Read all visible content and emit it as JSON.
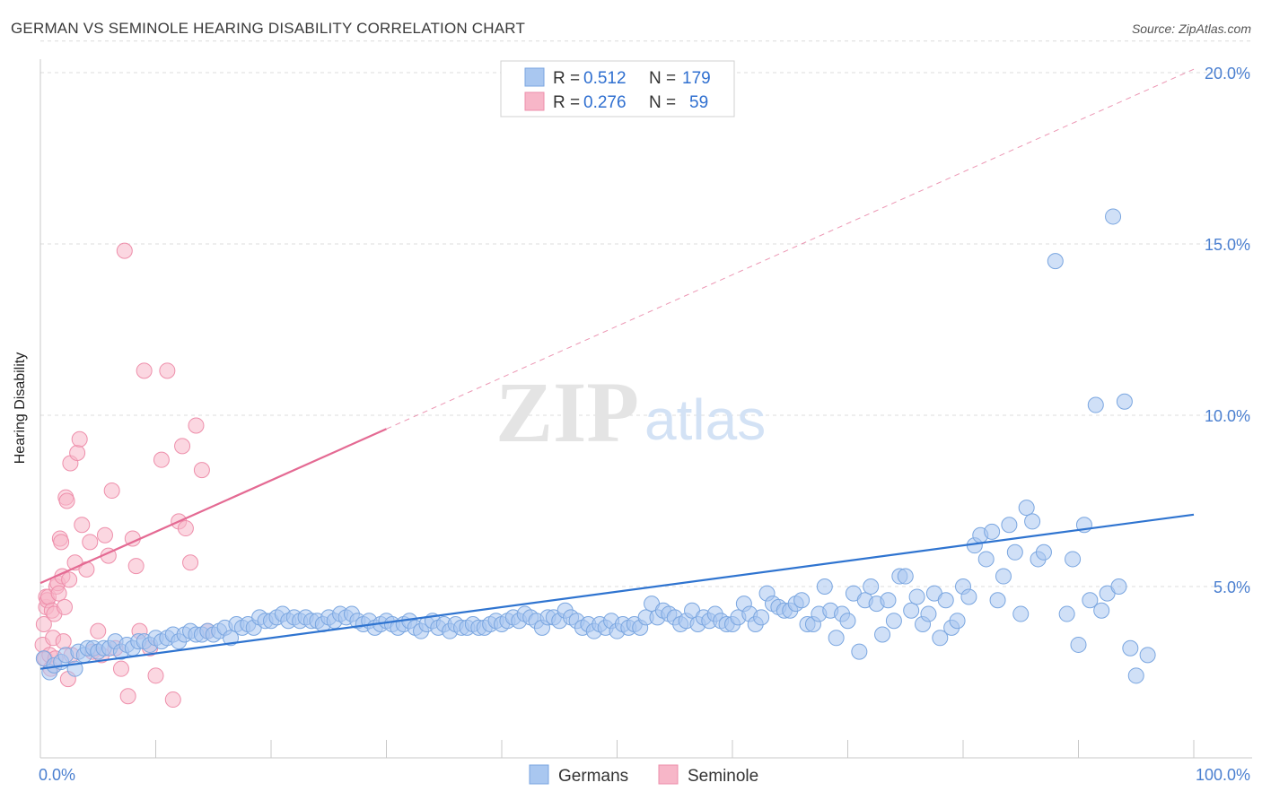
{
  "header": {
    "title": "GERMAN VS SEMINOLE HEARING DISABILITY CORRELATION CHART",
    "source": "Source: ZipAtlas.com"
  },
  "legend_top": {
    "rows": [
      {
        "r_label": "R =",
        "r_value": "0.512",
        "n_label": "N =",
        "n_value": "179",
        "color": "#a9c7f0"
      },
      {
        "r_label": "R =",
        "r_value": "0.276",
        "n_label": "N =",
        "n_value": "59",
        "color": "#f7b6c8"
      }
    ]
  },
  "legend_bottom": {
    "items": [
      {
        "label": "Germans",
        "color": "#a9c7f0"
      },
      {
        "label": "Seminole",
        "color": "#f7b6c8"
      }
    ]
  },
  "watermark": {
    "zip": "ZIP",
    "atlas": "atlas"
  },
  "colors": {
    "blue_point": "#a9c7f0",
    "blue_edge": "#7aa6e0",
    "blue_line": "#2f74d0",
    "pink_point": "#f7b6c8",
    "pink_edge": "#ee8fab",
    "pink_line": "#e46a93",
    "tick_label": "#4a7fd0",
    "grid": "#dcdcdc"
  },
  "chart_data": {
    "type": "scatter",
    "title": "GERMAN VS SEMINOLE HEARING DISABILITY CORRELATION CHART",
    "xlabel": "",
    "ylabel": "Hearing Disability",
    "xlim": [
      0,
      100
    ],
    "ylim": [
      0,
      21
    ],
    "x_tick_labels": [
      "0.0%",
      "100.0%"
    ],
    "y_ticks": [
      5,
      10,
      15,
      20
    ],
    "y_tick_labels": [
      "5.0%",
      "10.0%",
      "15.0%",
      "20.0%"
    ],
    "grid": true,
    "legend_position": "top-center",
    "series": [
      {
        "name": "Germans",
        "r": 0.512,
        "n": 179,
        "trend": {
          "x": [
            0,
            100
          ],
          "y": [
            2.6,
            7.1
          ],
          "style": "solid"
        },
        "points": [
          [
            0.3,
            2.9
          ],
          [
            0.8,
            2.5
          ],
          [
            1.2,
            2.7
          ],
          [
            1.8,
            2.8
          ],
          [
            2.2,
            3.0
          ],
          [
            3.0,
            2.6
          ],
          [
            3.3,
            3.1
          ],
          [
            3.8,
            3.0
          ],
          [
            4.1,
            3.2
          ],
          [
            4.6,
            3.2
          ],
          [
            5.0,
            3.1
          ],
          [
            5.5,
            3.2
          ],
          [
            6.0,
            3.2
          ],
          [
            6.5,
            3.4
          ],
          [
            7.0,
            3.1
          ],
          [
            7.5,
            3.3
          ],
          [
            8.0,
            3.2
          ],
          [
            8.5,
            3.4
          ],
          [
            9.0,
            3.4
          ],
          [
            9.5,
            3.3
          ],
          [
            10.0,
            3.5
          ],
          [
            10.5,
            3.4
          ],
          [
            11.0,
            3.5
          ],
          [
            11.5,
            3.6
          ],
          [
            12.0,
            3.4
          ],
          [
            12.5,
            3.6
          ],
          [
            13.0,
            3.7
          ],
          [
            13.5,
            3.6
          ],
          [
            14.0,
            3.6
          ],
          [
            14.5,
            3.7
          ],
          [
            15.0,
            3.6
          ],
          [
            15.5,
            3.7
          ],
          [
            16.0,
            3.8
          ],
          [
            16.5,
            3.5
          ],
          [
            17.0,
            3.9
          ],
          [
            17.5,
            3.8
          ],
          [
            18.0,
            3.9
          ],
          [
            18.5,
            3.8
          ],
          [
            19.0,
            4.1
          ],
          [
            19.5,
            4.0
          ],
          [
            20.0,
            4.0
          ],
          [
            20.5,
            4.1
          ],
          [
            21.0,
            4.2
          ],
          [
            21.5,
            4.0
          ],
          [
            22.0,
            4.1
          ],
          [
            22.5,
            4.0
          ],
          [
            23.0,
            4.1
          ],
          [
            23.5,
            4.0
          ],
          [
            24.0,
            4.0
          ],
          [
            24.5,
            3.9
          ],
          [
            25.0,
            4.1
          ],
          [
            25.5,
            4.0
          ],
          [
            26.0,
            4.2
          ],
          [
            26.5,
            4.1
          ],
          [
            27.0,
            4.2
          ],
          [
            27.5,
            4.0
          ],
          [
            28.0,
            3.9
          ],
          [
            28.5,
            4.0
          ],
          [
            29.0,
            3.8
          ],
          [
            29.5,
            3.9
          ],
          [
            30.0,
            4.0
          ],
          [
            30.5,
            3.9
          ],
          [
            31.0,
            3.8
          ],
          [
            31.5,
            3.9
          ],
          [
            32.0,
            4.0
          ],
          [
            32.5,
            3.8
          ],
          [
            33.0,
            3.7
          ],
          [
            33.5,
            3.9
          ],
          [
            34.0,
            4.0
          ],
          [
            34.5,
            3.8
          ],
          [
            35.0,
            3.9
          ],
          [
            35.5,
            3.7
          ],
          [
            36.0,
            3.9
          ],
          [
            36.5,
            3.8
          ],
          [
            37.0,
            3.8
          ],
          [
            37.5,
            3.9
          ],
          [
            38.0,
            3.8
          ],
          [
            38.5,
            3.8
          ],
          [
            39.0,
            3.9
          ],
          [
            39.5,
            4.0
          ],
          [
            40.0,
            3.9
          ],
          [
            40.5,
            4.0
          ],
          [
            41.0,
            4.1
          ],
          [
            41.5,
            4.0
          ],
          [
            42.0,
            4.2
          ],
          [
            42.5,
            4.1
          ],
          [
            43.0,
            4.0
          ],
          [
            43.5,
            3.8
          ],
          [
            44.0,
            4.1
          ],
          [
            44.5,
            4.1
          ],
          [
            45.0,
            4.0
          ],
          [
            45.5,
            4.3
          ],
          [
            46.0,
            4.1
          ],
          [
            46.5,
            4.0
          ],
          [
            47.0,
            3.8
          ],
          [
            47.5,
            3.9
          ],
          [
            48.0,
            3.7
          ],
          [
            48.5,
            3.9
          ],
          [
            49.0,
            3.8
          ],
          [
            49.5,
            4.0
          ],
          [
            50.0,
            3.7
          ],
          [
            50.5,
            3.9
          ],
          [
            51.0,
            3.8
          ],
          [
            51.5,
            3.9
          ],
          [
            52.0,
            3.8
          ],
          [
            52.5,
            4.1
          ],
          [
            53.0,
            4.5
          ],
          [
            53.5,
            4.1
          ],
          [
            54.0,
            4.3
          ],
          [
            54.5,
            4.2
          ],
          [
            55.0,
            4.1
          ],
          [
            55.5,
            3.9
          ],
          [
            56.0,
            4.0
          ],
          [
            56.5,
            4.3
          ],
          [
            57.0,
            3.9
          ],
          [
            57.5,
            4.1
          ],
          [
            58.0,
            4.0
          ],
          [
            58.5,
            4.2
          ],
          [
            59.0,
            4.0
          ],
          [
            59.5,
            3.9
          ],
          [
            60.0,
            3.9
          ],
          [
            60.5,
            4.1
          ],
          [
            61.0,
            4.5
          ],
          [
            61.5,
            4.2
          ],
          [
            62.0,
            3.9
          ],
          [
            62.5,
            4.1
          ],
          [
            63.0,
            4.8
          ],
          [
            63.5,
            4.5
          ],
          [
            64.0,
            4.4
          ],
          [
            64.5,
            4.3
          ],
          [
            65.0,
            4.3
          ],
          [
            65.5,
            4.5
          ],
          [
            66.0,
            4.6
          ],
          [
            66.5,
            3.9
          ],
          [
            67.0,
            3.9
          ],
          [
            67.5,
            4.2
          ],
          [
            68.0,
            5.0
          ],
          [
            68.5,
            4.3
          ],
          [
            69.0,
            3.5
          ],
          [
            69.5,
            4.2
          ],
          [
            70.0,
            4.0
          ],
          [
            70.5,
            4.8
          ],
          [
            71.0,
            3.1
          ],
          [
            71.5,
            4.6
          ],
          [
            72.0,
            5.0
          ],
          [
            72.5,
            4.5
          ],
          [
            73.0,
            3.6
          ],
          [
            73.5,
            4.6
          ],
          [
            74.0,
            4.0
          ],
          [
            74.5,
            5.3
          ],
          [
            75.0,
            5.3
          ],
          [
            75.5,
            4.3
          ],
          [
            76.0,
            4.7
          ],
          [
            76.5,
            3.9
          ],
          [
            77.0,
            4.2
          ],
          [
            77.5,
            4.8
          ],
          [
            78.0,
            3.5
          ],
          [
            78.5,
            4.6
          ],
          [
            79.0,
            3.8
          ],
          [
            79.5,
            4.0
          ],
          [
            80.0,
            5.0
          ],
          [
            80.5,
            4.7
          ],
          [
            81.0,
            6.2
          ],
          [
            81.5,
            6.5
          ],
          [
            82.0,
            5.8
          ],
          [
            82.5,
            6.6
          ],
          [
            83.0,
            4.6
          ],
          [
            83.5,
            5.3
          ],
          [
            84.0,
            6.8
          ],
          [
            84.5,
            6.0
          ],
          [
            85.0,
            4.2
          ],
          [
            85.5,
            7.3
          ],
          [
            86.0,
            6.9
          ],
          [
            86.5,
            5.8
          ],
          [
            87.0,
            6.0
          ],
          [
            88.0,
            14.5
          ],
          [
            89.0,
            4.2
          ],
          [
            89.5,
            5.8
          ],
          [
            90.0,
            3.3
          ],
          [
            90.5,
            6.8
          ],
          [
            91.0,
            4.6
          ],
          [
            91.5,
            10.3
          ],
          [
            92.0,
            4.3
          ],
          [
            92.5,
            4.8
          ],
          [
            93.0,
            15.8
          ],
          [
            93.5,
            5.0
          ],
          [
            94.0,
            10.4
          ],
          [
            94.5,
            3.2
          ],
          [
            95.0,
            2.4
          ],
          [
            96.0,
            3.0
          ]
        ]
      },
      {
        "name": "Seminole",
        "r": 0.276,
        "n": 59,
        "trend": {
          "x": [
            0,
            30
          ],
          "y": [
            5.1,
            9.6
          ],
          "style": "solid",
          "extended": {
            "x": [
              30,
              100
            ],
            "y": [
              9.6,
              20.1
            ],
            "style": "dashed"
          }
        },
        "points": [
          [
            0.2,
            3.3
          ],
          [
            0.3,
            3.9
          ],
          [
            0.4,
            2.9
          ],
          [
            0.5,
            4.4
          ],
          [
            0.5,
            4.7
          ],
          [
            0.6,
            4.6
          ],
          [
            0.7,
            4.7
          ],
          [
            0.8,
            3.0
          ],
          [
            0.9,
            2.6
          ],
          [
            1.0,
            4.3
          ],
          [
            1.1,
            3.5
          ],
          [
            1.2,
            4.2
          ],
          [
            1.3,
            2.9
          ],
          [
            1.4,
            5.0
          ],
          [
            1.5,
            5.1
          ],
          [
            1.6,
            4.8
          ],
          [
            1.7,
            6.4
          ],
          [
            1.8,
            6.3
          ],
          [
            1.9,
            5.3
          ],
          [
            2.0,
            3.4
          ],
          [
            2.1,
            4.4
          ],
          [
            2.2,
            7.6
          ],
          [
            2.3,
            7.5
          ],
          [
            2.4,
            2.3
          ],
          [
            2.5,
            5.2
          ],
          [
            2.6,
            8.6
          ],
          [
            2.7,
            3.0
          ],
          [
            3.0,
            5.7
          ],
          [
            3.2,
            8.9
          ],
          [
            3.4,
            9.3
          ],
          [
            3.6,
            6.8
          ],
          [
            4.0,
            5.5
          ],
          [
            4.3,
            6.3
          ],
          [
            4.5,
            3.1
          ],
          [
            5.0,
            3.7
          ],
          [
            5.3,
            3.0
          ],
          [
            5.6,
            6.5
          ],
          [
            5.9,
            5.9
          ],
          [
            6.2,
            7.8
          ],
          [
            6.5,
            3.2
          ],
          [
            7.0,
            2.6
          ],
          [
            7.3,
            14.8
          ],
          [
            7.6,
            1.8
          ],
          [
            8.0,
            6.4
          ],
          [
            8.3,
            5.6
          ],
          [
            8.6,
            3.7
          ],
          [
            9.0,
            11.3
          ],
          [
            9.5,
            3.2
          ],
          [
            10.0,
            2.4
          ],
          [
            10.5,
            8.7
          ],
          [
            11.0,
            11.3
          ],
          [
            11.5,
            1.7
          ],
          [
            12.0,
            6.9
          ],
          [
            12.3,
            9.1
          ],
          [
            12.6,
            6.7
          ],
          [
            13.0,
            5.7
          ],
          [
            13.5,
            9.7
          ],
          [
            14.0,
            8.4
          ],
          [
            14.5,
            3.7
          ]
        ]
      }
    ]
  }
}
